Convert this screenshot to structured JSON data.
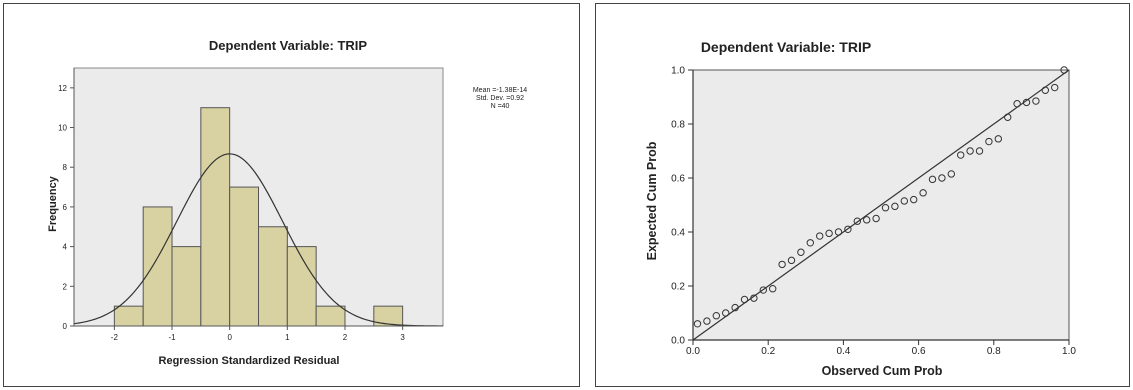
{
  "chart_data": [
    {
      "type": "bar",
      "title": "Dependent Variable: TRIP",
      "xlabel": "Regression Standardized Residual",
      "ylabel": "Frequency",
      "xlim": [
        -2.7,
        3.7
      ],
      "ylim": [
        0,
        13
      ],
      "xticks": [
        "-2",
        "-1",
        "0",
        "1",
        "2",
        "3"
      ],
      "xtick_values": [
        -2,
        -1,
        0,
        1,
        2,
        3
      ],
      "yticks": [
        "0",
        "2",
        "4",
        "6",
        "8",
        "10",
        "12"
      ],
      "ytick_values": [
        0,
        2,
        4,
        6,
        8,
        10,
        12
      ],
      "bins": [
        {
          "x0": -2.0,
          "x1": -1.5,
          "count": 1
        },
        {
          "x0": -1.5,
          "x1": -1.0,
          "count": 6
        },
        {
          "x0": -1.0,
          "x1": -0.5,
          "count": 4
        },
        {
          "x0": -0.5,
          "x1": 0.0,
          "count": 11
        },
        {
          "x0": 0.0,
          "x1": 0.5,
          "count": 7
        },
        {
          "x0": 0.5,
          "x1": 1.0,
          "count": 5
        },
        {
          "x0": 1.0,
          "x1": 1.5,
          "count": 4
        },
        {
          "x0": 1.5,
          "x1": 2.0,
          "count": 1
        },
        {
          "x0": 2.5,
          "x1": 3.0,
          "count": 1
        }
      ],
      "normal_curve": {
        "mean": 0,
        "sd": 0.92,
        "n": 40,
        "bin_width": 0.5
      },
      "stats": [
        "Mean =-1.38E-14",
        "Std. Dev. =0.92",
        "N =40"
      ],
      "colors": {
        "bar": "#d8d2a2",
        "bar_edge": "#555555",
        "plot_bg": "#ebebeb",
        "curve": "#333333"
      }
    },
    {
      "type": "scatter",
      "title": "Dependent Variable: TRIP",
      "xlabel": "Observed Cum Prob",
      "ylabel": "Expected Cum Prob",
      "xlim": [
        0,
        1
      ],
      "ylim": [
        0,
        1
      ],
      "xticks": [
        "0.0",
        "0.2",
        "0.4",
        "0.6",
        "0.8",
        "1.0"
      ],
      "yticks": [
        "0.0",
        "0.2",
        "0.4",
        "0.6",
        "0.8",
        "1.0"
      ],
      "tick_values": [
        0,
        0.2,
        0.4,
        0.6,
        0.8,
        1.0
      ],
      "reference_line": [
        [
          0,
          0
        ],
        [
          1,
          1
        ]
      ],
      "x": [
        0.012,
        0.037,
        0.062,
        0.087,
        0.112,
        0.137,
        0.162,
        0.187,
        0.212,
        0.237,
        0.262,
        0.287,
        0.312,
        0.337,
        0.362,
        0.387,
        0.412,
        0.437,
        0.462,
        0.487,
        0.512,
        0.537,
        0.562,
        0.587,
        0.612,
        0.637,
        0.662,
        0.687,
        0.712,
        0.737,
        0.762,
        0.787,
        0.812,
        0.837,
        0.862,
        0.887,
        0.912,
        0.937,
        0.962,
        0.987
      ],
      "y": [
        0.06,
        0.07,
        0.09,
        0.1,
        0.12,
        0.15,
        0.155,
        0.185,
        0.19,
        0.28,
        0.295,
        0.325,
        0.36,
        0.385,
        0.395,
        0.4,
        0.41,
        0.44,
        0.445,
        0.45,
        0.49,
        0.495,
        0.515,
        0.52,
        0.545,
        0.595,
        0.6,
        0.615,
        0.685,
        0.7,
        0.7,
        0.735,
        0.745,
        0.825,
        0.875,
        0.88,
        0.885,
        0.925,
        0.935,
        1.0
      ],
      "colors": {
        "plot_bg": "#ebebeb",
        "marker": "#333333",
        "line": "#333333"
      }
    }
  ]
}
